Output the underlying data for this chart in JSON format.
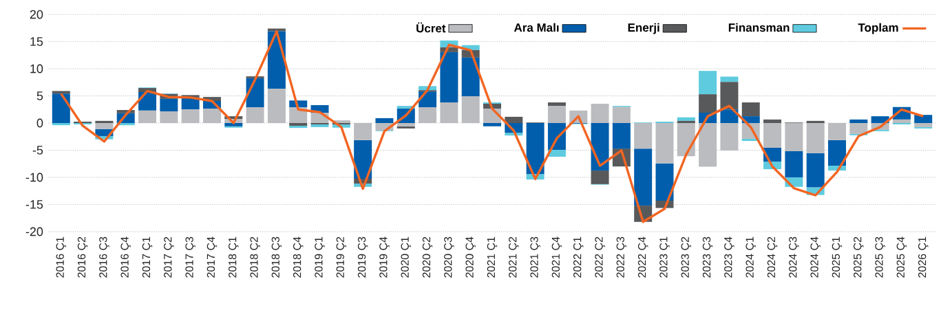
{
  "chart_data": {
    "type": "bar",
    "stacked": true,
    "categories": [
      "2016 Ç1",
      "2016 Ç2",
      "2016 Ç3",
      "2016 Ç4",
      "2017 Ç1",
      "2017 Ç2",
      "2017 Ç3",
      "2017 Ç4",
      "2018 Ç1",
      "2018 Ç2",
      "2018 Ç3",
      "2018 Ç4",
      "2019 Ç1",
      "2019 Ç2",
      "2019 Ç3",
      "2019 Ç4",
      "2020 Ç1",
      "2020 Ç2",
      "2020 Ç3",
      "2020 Ç4",
      "2021 Ç1",
      "2021 Ç2",
      "2021 Ç3",
      "2021 Ç4",
      "2022 Ç1",
      "2022 Ç2",
      "2022 Ç3",
      "2022 Ç4",
      "2023 Ç1",
      "2023 Ç2",
      "2023 Ç3",
      "2023 Ç4",
      "2024 Ç1",
      "2024 Ç2",
      "2024 Ç3",
      "2024 Ç4",
      "2025 Ç1",
      "2025 Ç2",
      "2025 Ç3",
      "2025 Ç4",
      "2026 Ç1"
    ],
    "series": [
      {
        "name": "Ücret",
        "color": "#bbbcc0",
        "values": [
          0,
          0,
          -1.1,
          null,
          2.3,
          2.15,
          2.5,
          2.65,
          0.75,
          2.9,
          6.3,
          2.9,
          1.9,
          0.5,
          -3.15,
          -1.4,
          -0.6,
          2.9,
          3.8,
          4.95,
          2.65,
          0,
          null,
          3.15,
          2.3,
          3.55,
          2.95,
          -4.7,
          -7.45,
          -6.1,
          -8.05,
          -5.05,
          -2.9,
          -4.55,
          -5.2,
          -5.55,
          -3.15,
          -2.0,
          -1.25,
          0.65,
          -0.75
        ]
      },
      {
        "name": "Ara Malı",
        "color": "#005eac",
        "values": [
          5.4,
          0,
          -1.3,
          1.8,
          3.4,
          2.3,
          2.2,
          1.4,
          -0.6,
          5.35,
          10.6,
          1.25,
          1.4,
          0,
          -7.1,
          0.9,
          2.65,
          2.9,
          9.25,
          7.1,
          -0.6,
          -1.8,
          -9.4,
          -4.95,
          -0.1,
          -8.75,
          -4.7,
          -10.5,
          -6.85,
          0,
          1.9,
          2.5,
          1.25,
          -2.55,
          -4.8,
          -6.3,
          -4.7,
          0.65,
          1.25,
          2.3,
          1.5
        ]
      },
      {
        "name": "Enerji",
        "color": "#58595b",
        "values": [
          0.5,
          0.25,
          0.4,
          0.6,
          0.75,
          0.9,
          0.45,
          0.75,
          0.5,
          0.35,
          0.5,
          -0.5,
          -0.25,
          -0.25,
          -0.9,
          0,
          -0.4,
          0.25,
          0.9,
          1.4,
          0.9,
          1.15,
          0.1,
          0.65,
          0,
          -2.5,
          -3.3,
          -3.0,
          -1.35,
          0.4,
          3.4,
          5.05,
          2.55,
          0.65,
          0.1,
          0.4,
          0,
          0,
          0,
          0,
          0
        ]
      },
      {
        "name": "Finansman",
        "color": "#5ecbdf",
        "values": [
          -0.4,
          -0.25,
          -0.6,
          -0.4,
          0.1,
          0.1,
          null,
          0,
          -0.25,
          0,
          0,
          -0.4,
          -0.5,
          -0.6,
          -0.6,
          -0.1,
          0.5,
          0.75,
          1.25,
          0.9,
          0.25,
          -0.5,
          -1.0,
          -1.25,
          -0.1,
          -0.1,
          0.2,
          0.1,
          0.25,
          0.65,
          4.3,
          1.0,
          -0.4,
          -1.4,
          -1.75,
          -1.4,
          -0.9,
          -0.25,
          -0.25,
          -0.25,
          -0.25
        ]
      },
      {
        "name": "Toplam",
        "type": "line",
        "color": "#f26522",
        "values": [
          5.4,
          -0.5,
          -3.4,
          1.5,
          5.9,
          4.8,
          4.7,
          4.05,
          0,
          8,
          16.9,
          2.5,
          2.0,
          -0.75,
          -12.1,
          -1.5,
          1.4,
          6.1,
          14.4,
          13.4,
          2.65,
          -1.4,
          -10.3,
          -2.8,
          1.25,
          -7.85,
          -5.05,
          -18.2,
          -15.8,
          -5.8,
          1.25,
          3.15,
          -0.75,
          -8.0,
          -12.0,
          -13.3,
          -9.0,
          -2.4,
          -0.75,
          2.5,
          1.25
        ]
      }
    ],
    "ylim": [
      -20,
      20
    ],
    "yticks": [
      -20,
      -15,
      -10,
      -5,
      0,
      5,
      10,
      15,
      20
    ],
    "grid": "y",
    "legend": "top right",
    "marker": "none",
    "line_style": "solid"
  }
}
